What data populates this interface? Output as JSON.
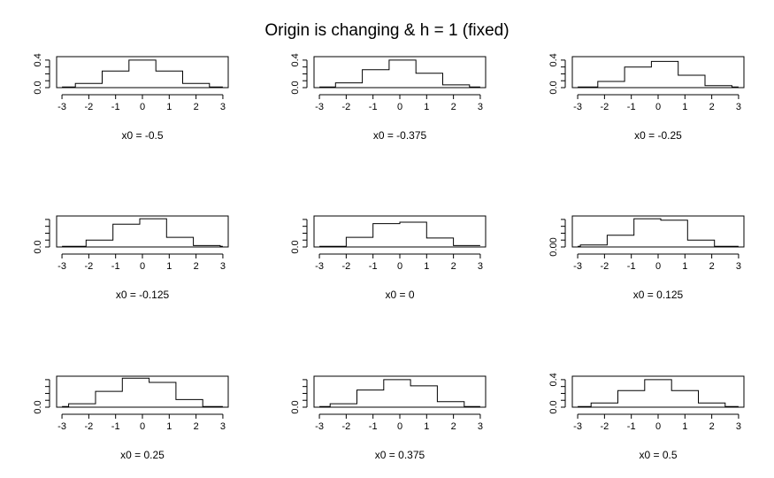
{
  "title": "Origin is changing & h = 1 (fixed)",
  "chart_data": [
    {
      "type": "line",
      "title": "",
      "xlabel": "x0 =  -0.5",
      "ylabel": "",
      "xlim": [
        -3.2,
        3.2
      ],
      "ylim": [
        0,
        0.45
      ],
      "xticks": [
        "-3",
        "-2",
        "-1",
        "0",
        "1",
        "2",
        "3"
      ],
      "yticks": [
        "0.0",
        "0.4"
      ],
      "x": [
        -3.0,
        -2.5,
        -2.5,
        -1.5,
        -1.5,
        -0.5,
        -0.5,
        0.5,
        0.5,
        1.5,
        1.5,
        2.5,
        2.5,
        3.0
      ],
      "y": [
        0.01,
        0.01,
        0.06,
        0.06,
        0.24,
        0.24,
        0.4,
        0.4,
        0.24,
        0.24,
        0.06,
        0.06,
        0.01,
        0.01
      ]
    },
    {
      "type": "line",
      "title": "",
      "xlabel": "x0 =  -0.375",
      "ylabel": "",
      "xlim": [
        -3.2,
        3.2
      ],
      "ylim": [
        0,
        0.45
      ],
      "xticks": [
        "-3",
        "-2",
        "-1",
        "0",
        "1",
        "2",
        "3"
      ],
      "yticks": [
        "0.0",
        "0.4"
      ],
      "x": [
        -3.0,
        -2.4,
        -2.4,
        -1.4,
        -1.4,
        -0.4,
        -0.4,
        0.6,
        0.6,
        1.6,
        1.6,
        2.6,
        2.6,
        3.0
      ],
      "y": [
        0.01,
        0.01,
        0.07,
        0.07,
        0.26,
        0.26,
        0.4,
        0.4,
        0.21,
        0.21,
        0.04,
        0.04,
        0.01,
        0.01
      ]
    },
    {
      "type": "line",
      "title": "",
      "xlabel": "x0 =  -0.25",
      "ylabel": "",
      "xlim": [
        -3.2,
        3.2
      ],
      "ylim": [
        0,
        0.45
      ],
      "xticks": [
        "-3",
        "-2",
        "-1",
        "0",
        "1",
        "2",
        "3"
      ],
      "yticks": [
        "0.0",
        "0.4"
      ],
      "x": [
        -3.0,
        -2.25,
        -2.25,
        -1.25,
        -1.25,
        -0.25,
        -0.25,
        0.75,
        0.75,
        1.75,
        1.75,
        2.75,
        2.75,
        3.0
      ],
      "y": [
        0.01,
        0.01,
        0.09,
        0.09,
        0.3,
        0.3,
        0.38,
        0.38,
        0.18,
        0.18,
        0.03,
        0.03,
        0.01,
        0.01
      ]
    },
    {
      "type": "line",
      "title": "",
      "xlabel": "x0 =  -0.125",
      "ylabel": "",
      "xlim": [
        -3.2,
        3.2
      ],
      "ylim": [
        0,
        0.45
      ],
      "xticks": [
        "-3",
        "-2",
        "-1",
        "0",
        "1",
        "2",
        "3"
      ],
      "yticks": [
        "0.0"
      ],
      "x": [
        -3.0,
        -2.1,
        -2.1,
        -1.1,
        -1.1,
        -0.1,
        -0.1,
        0.9,
        0.9,
        1.9,
        1.9,
        2.9,
        2.9,
        3.0
      ],
      "y": [
        0.01,
        0.01,
        0.1,
        0.1,
        0.33,
        0.33,
        0.41,
        0.41,
        0.14,
        0.14,
        0.02,
        0.02,
        0.01,
        0.01
      ]
    },
    {
      "type": "line",
      "title": "",
      "xlabel": "x0 =  0",
      "ylabel": "",
      "xlim": [
        -3.2,
        3.2
      ],
      "ylim": [
        0,
        0.45
      ],
      "xticks": [
        "-3",
        "-2",
        "-1",
        "0",
        "1",
        "2",
        "3"
      ],
      "yticks": [
        "0.0"
      ],
      "x": [
        -3.0,
        -2.0,
        -2.0,
        -1.0,
        -1.0,
        0.0,
        0.0,
        1.0,
        1.0,
        2.0,
        2.0,
        3.0
      ],
      "y": [
        0.01,
        0.01,
        0.14,
        0.14,
        0.34,
        0.34,
        0.36,
        0.36,
        0.13,
        0.13,
        0.02,
        0.02
      ]
    },
    {
      "type": "line",
      "title": "",
      "xlabel": "x0 =  0.125",
      "ylabel": "",
      "xlim": [
        -3.2,
        3.2
      ],
      "ylim": [
        0,
        0.45
      ],
      "xticks": [
        "-3",
        "-2",
        "-1",
        "0",
        "1",
        "2",
        "3"
      ],
      "yticks": [
        "0.00"
      ],
      "x": [
        -3.0,
        -2.9,
        -2.9,
        -1.9,
        -1.9,
        -0.9,
        -0.9,
        0.1,
        0.1,
        1.1,
        1.1,
        2.1,
        2.1,
        3.0
      ],
      "y": [
        0.01,
        0.01,
        0.03,
        0.03,
        0.17,
        0.17,
        0.41,
        0.41,
        0.39,
        0.39,
        0.1,
        0.1,
        0.01,
        0.01
      ]
    },
    {
      "type": "line",
      "title": "",
      "xlabel": "x0 =  0.25",
      "ylabel": "",
      "xlim": [
        -3.2,
        3.2
      ],
      "ylim": [
        0,
        0.45
      ],
      "xticks": [
        "-3",
        "-2",
        "-1",
        "0",
        "1",
        "2",
        "3"
      ],
      "yticks": [
        "0.0"
      ],
      "x": [
        -3.0,
        -2.75,
        -2.75,
        -1.75,
        -1.75,
        -0.75,
        -0.75,
        0.25,
        0.25,
        1.25,
        1.25,
        2.25,
        2.25,
        3.0
      ],
      "y": [
        0.01,
        0.01,
        0.05,
        0.05,
        0.23,
        0.23,
        0.42,
        0.42,
        0.36,
        0.36,
        0.11,
        0.11,
        0.01,
        0.01
      ]
    },
    {
      "type": "line",
      "title": "",
      "xlabel": "x0 =  0.375",
      "ylabel": "",
      "xlim": [
        -3.2,
        3.2
      ],
      "ylim": [
        0,
        0.45
      ],
      "xticks": [
        "-3",
        "-2",
        "-1",
        "0",
        "1",
        "2",
        "3"
      ],
      "yticks": [
        "0.0"
      ],
      "x": [
        -3.0,
        -2.6,
        -2.6,
        -1.6,
        -1.6,
        -0.6,
        -0.6,
        0.4,
        0.4,
        1.4,
        1.4,
        2.4,
        2.4,
        3.0
      ],
      "y": [
        0.01,
        0.01,
        0.05,
        0.05,
        0.25,
        0.25,
        0.4,
        0.4,
        0.31,
        0.31,
        0.08,
        0.08,
        0.01,
        0.01
      ]
    },
    {
      "type": "line",
      "title": "",
      "xlabel": "x0 =  0.5",
      "ylabel": "",
      "xlim": [
        -3.2,
        3.2
      ],
      "ylim": [
        0,
        0.45
      ],
      "xticks": [
        "-3",
        "-2",
        "-1",
        "0",
        "1",
        "2",
        "3"
      ],
      "yticks": [
        "0.0",
        "0.4"
      ],
      "x": [
        -3.0,
        -2.5,
        -2.5,
        -1.5,
        -1.5,
        -0.5,
        -0.5,
        0.5,
        0.5,
        1.5,
        1.5,
        2.5,
        2.5,
        3.0
      ],
      "y": [
        0.01,
        0.01,
        0.06,
        0.06,
        0.24,
        0.24,
        0.4,
        0.4,
        0.24,
        0.24,
        0.06,
        0.06,
        0.01,
        0.01
      ]
    }
  ]
}
